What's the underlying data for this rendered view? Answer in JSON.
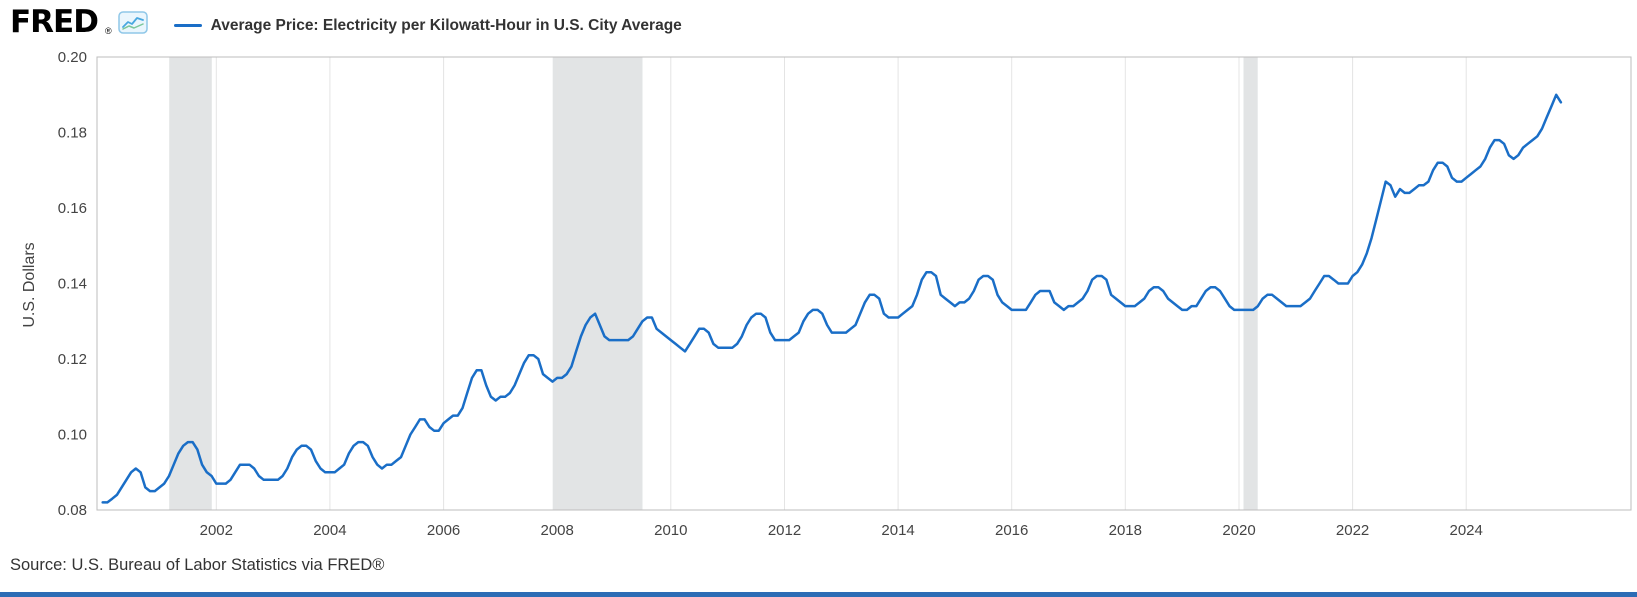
{
  "header": {
    "logo_text": "FRED",
    "registered": "®",
    "legend_label": "Average Price: Electricity per Kilowatt-Hour in U.S. City Average"
  },
  "axes": {
    "y_label": "U.S. Dollars"
  },
  "footer": {
    "source": "Source: U.S. Bureau of Labor Statistics via FRED®"
  },
  "colors": {
    "line": "#1a6ec7",
    "recession_band": "#e2e4e5",
    "grid": "#e4e4e4",
    "frame": "#bdbdbd",
    "tick_text": "#444444",
    "footer_bar": "#2c6cb5"
  },
  "chart_data": {
    "type": "line",
    "title": "Average Price: Electricity per Kilowatt-Hour in U.S. City Average",
    "xlabel": "",
    "ylabel": "U.S. Dollars",
    "ylim": [
      0.08,
      0.2
    ],
    "yticks": [
      0.08,
      0.1,
      0.12,
      0.14,
      0.16,
      0.18,
      0.2
    ],
    "xlim": [
      1999.9,
      2026.9
    ],
    "xticks": [
      2002,
      2004,
      2006,
      2008,
      2010,
      2012,
      2014,
      2016,
      2018,
      2020,
      2022,
      2024
    ],
    "grid": "vertical-only",
    "legend_position": "top",
    "frequency": "monthly",
    "x_start": 2000.0,
    "recessions": [
      [
        2001.17,
        2001.92
      ],
      [
        2007.92,
        2009.5
      ],
      [
        2020.08,
        2020.33
      ]
    ],
    "values": [
      0.082,
      0.082,
      0.083,
      0.084,
      0.086,
      0.088,
      0.09,
      0.091,
      0.09,
      0.086,
      0.085,
      0.085,
      0.086,
      0.087,
      0.089,
      0.092,
      0.095,
      0.097,
      0.098,
      0.098,
      0.096,
      0.092,
      0.09,
      0.089,
      0.087,
      0.087,
      0.087,
      0.088,
      0.09,
      0.092,
      0.092,
      0.092,
      0.091,
      0.089,
      0.088,
      0.088,
      0.088,
      0.088,
      0.089,
      0.091,
      0.094,
      0.096,
      0.097,
      0.097,
      0.096,
      0.093,
      0.091,
      0.09,
      0.09,
      0.09,
      0.091,
      0.092,
      0.095,
      0.097,
      0.098,
      0.098,
      0.097,
      0.094,
      0.092,
      0.091,
      0.092,
      0.092,
      0.093,
      0.094,
      0.097,
      0.1,
      0.102,
      0.104,
      0.104,
      0.102,
      0.101,
      0.101,
      0.103,
      0.104,
      0.105,
      0.105,
      0.107,
      0.111,
      0.115,
      0.117,
      0.117,
      0.113,
      0.11,
      0.109,
      0.11,
      0.11,
      0.111,
      0.113,
      0.116,
      0.119,
      0.121,
      0.121,
      0.12,
      0.116,
      0.115,
      0.114,
      0.115,
      0.115,
      0.116,
      0.118,
      0.122,
      0.126,
      0.129,
      0.131,
      0.132,
      0.129,
      0.126,
      0.125,
      0.125,
      0.125,
      0.125,
      0.125,
      0.126,
      0.128,
      0.13,
      0.131,
      0.131,
      0.128,
      0.127,
      0.126,
      0.125,
      0.124,
      0.123,
      0.122,
      0.124,
      0.126,
      0.128,
      0.128,
      0.127,
      0.124,
      0.123,
      0.123,
      0.123,
      0.123,
      0.124,
      0.126,
      0.129,
      0.131,
      0.132,
      0.132,
      0.131,
      0.127,
      0.125,
      0.125,
      0.125,
      0.125,
      0.126,
      0.127,
      0.13,
      0.132,
      0.133,
      0.133,
      0.132,
      0.129,
      0.127,
      0.127,
      0.127,
      0.127,
      0.128,
      0.129,
      0.132,
      0.135,
      0.137,
      0.137,
      0.136,
      0.132,
      0.131,
      0.131,
      0.131,
      0.132,
      0.133,
      0.134,
      0.137,
      0.141,
      0.143,
      0.143,
      0.142,
      0.137,
      0.136,
      0.135,
      0.134,
      0.135,
      0.135,
      0.136,
      0.138,
      0.141,
      0.142,
      0.142,
      0.141,
      0.137,
      0.135,
      0.134,
      0.133,
      0.133,
      0.133,
      0.133,
      0.135,
      0.137,
      0.138,
      0.138,
      0.138,
      0.135,
      0.134,
      0.133,
      0.134,
      0.134,
      0.135,
      0.136,
      0.138,
      0.141,
      0.142,
      0.142,
      0.141,
      0.137,
      0.136,
      0.135,
      0.134,
      0.134,
      0.134,
      0.135,
      0.136,
      0.138,
      0.139,
      0.139,
      0.138,
      0.136,
      0.135,
      0.134,
      0.133,
      0.133,
      0.134,
      0.134,
      0.136,
      0.138,
      0.139,
      0.139,
      0.138,
      0.136,
      0.134,
      0.133,
      0.133,
      0.133,
      0.133,
      0.133,
      0.134,
      0.136,
      0.137,
      0.137,
      0.136,
      0.135,
      0.134,
      0.134,
      0.134,
      0.134,
      0.135,
      0.136,
      0.138,
      0.14,
      0.142,
      0.142,
      0.141,
      0.14,
      0.14,
      0.14,
      0.142,
      0.143,
      0.145,
      0.148,
      0.152,
      0.157,
      0.162,
      0.167,
      0.166,
      0.163,
      0.165,
      0.164,
      0.164,
      0.165,
      0.166,
      0.166,
      0.167,
      0.17,
      0.172,
      0.172,
      0.171,
      0.168,
      0.167,
      0.167,
      0.168,
      0.169,
      0.17,
      0.171,
      0.173,
      0.176,
      0.178,
      0.178,
      0.177,
      0.174,
      0.173,
      0.174,
      0.176,
      0.177,
      0.178,
      0.179,
      0.181,
      0.184,
      0.187,
      0.19,
      0.188
    ]
  }
}
